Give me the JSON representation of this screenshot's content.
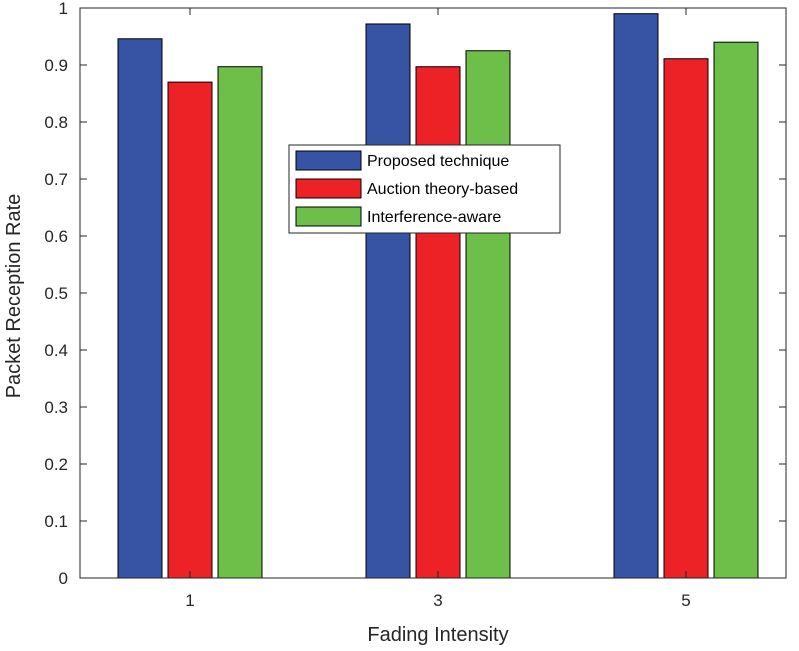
{
  "chart_data": {
    "type": "bar",
    "title": "",
    "xlabel": "Fading Intensity",
    "ylabel": "Packet Reception Rate",
    "categories": [
      "1",
      "3",
      "5"
    ],
    "ylim": [
      0,
      1
    ],
    "yticks": [
      "0",
      "0.1",
      "0.2",
      "0.3",
      "0.4",
      "0.5",
      "0.6",
      "0.7",
      "0.8",
      "0.9",
      "1"
    ],
    "legend_position": "center",
    "series": [
      {
        "name": "Proposed technique",
        "color": "#3753a4",
        "values": [
          0.946,
          0.972,
          0.99
        ]
      },
      {
        "name": "Auction theory-based",
        "color": "#ec2227",
        "values": [
          0.87,
          0.897,
          0.911
        ]
      },
      {
        "name": "Interference-aware",
        "color": "#6ebe4a",
        "values": [
          0.897,
          0.925,
          0.94
        ]
      }
    ]
  }
}
